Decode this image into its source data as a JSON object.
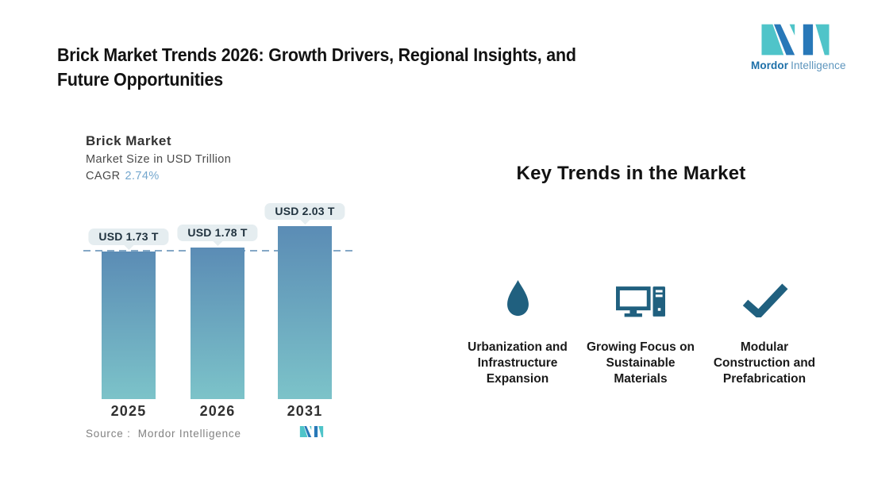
{
  "header": {
    "title_line1": "Brick Market Trends 2026: Growth Drivers, Regional Insights, and",
    "title_line2": "Future Opportunities"
  },
  "brand": {
    "name_bold": "Mordor",
    "name_light": "Intelligence",
    "logo_teal": "#4FC4C9",
    "logo_blue": "#2878B8",
    "name_bold_color": "#1C6FA8",
    "name_light_color": "#5D95BD"
  },
  "chart_data": {
    "type": "bar",
    "title": "Brick Market",
    "subtitle": "Market Size in USD Trillion",
    "cagr_label": "CAGR",
    "cagr_value": "2.74%",
    "cagr_value_color": "#74A7CE",
    "categories": [
      "2025",
      "2026",
      "2031"
    ],
    "values": [
      1.73,
      1.78,
      2.03
    ],
    "value_labels": [
      "USD 1.73 T",
      "USD 1.78 T",
      "USD 2.03 T"
    ],
    "unit": "USD Trillion",
    "ylim": [
      0,
      2.45
    ],
    "reference_line": 1.73,
    "grid": "off",
    "legend": "none",
    "bar_color_top": "#5B8CB5",
    "bar_color_bottom": "#7CC3C9",
    "dashed_line_color": "#85A8C6",
    "source_label": "Source :  Mordor Intelligence"
  },
  "key_trends": {
    "heading": "Key Trends in the Market",
    "icon_color": "#20607F",
    "items": [
      {
        "icon": "water-drop-icon",
        "lines": [
          "Urbanization and",
          "Infrastructure",
          "Expansion"
        ]
      },
      {
        "icon": "computer-icon",
        "lines": [
          "Growing Focus on",
          "Sustainable",
          "Materials"
        ]
      },
      {
        "icon": "checkmark-icon",
        "lines": [
          "Modular",
          "Construction and",
          "Prefabrication"
        ]
      }
    ]
  }
}
